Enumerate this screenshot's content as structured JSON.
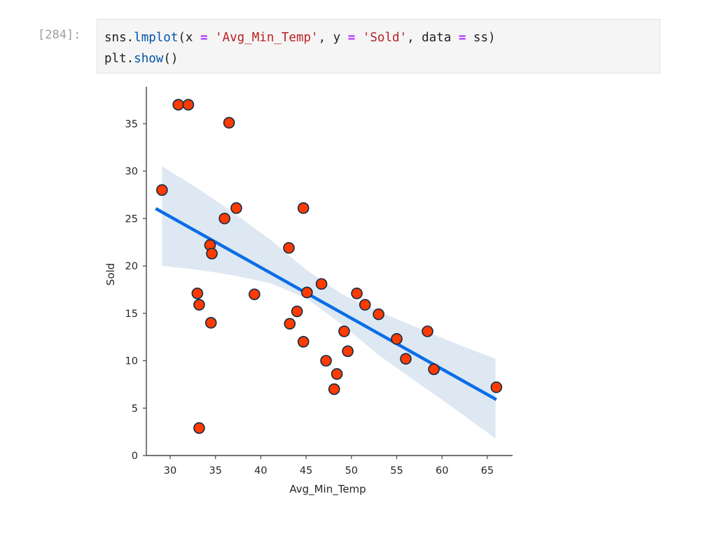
{
  "cell": {
    "prompt": "[284]:",
    "line1": {
      "t1": "sns.",
      "t2": "lmplot",
      "t3": "(x ",
      "t4": "=",
      "t5": " ",
      "t6": "'Avg_Min_Temp'",
      "t7": ", y ",
      "t8": "=",
      "t9": " ",
      "t10": "'Sold'",
      "t11": ", data ",
      "t12": "=",
      "t13": " ss)"
    },
    "line2": {
      "t1": "plt.",
      "t2": "show",
      "t3": "()"
    }
  },
  "colors": {
    "marker_fill": "#ff3b00",
    "marker_edge": "#0d2a4a",
    "line": "#0a6de6",
    "band": "#dde8f3"
  },
  "chart_data": {
    "type": "scatter",
    "title": "",
    "xlabel": "Avg_Min_Temp",
    "ylabel": "Sold",
    "xlim": [
      27.5,
      68
    ],
    "ylim": [
      0,
      38.5
    ],
    "xticks": [
      30,
      35,
      40,
      45,
      50,
      55,
      60,
      65
    ],
    "yticks": [
      0,
      5,
      10,
      15,
      20,
      25,
      30,
      35
    ],
    "grid": false,
    "legend": null,
    "points": [
      {
        "x": 30.9,
        "y": 37.0
      },
      {
        "x": 32.0,
        "y": 37.0
      },
      {
        "x": 36.5,
        "y": 35.1
      },
      {
        "x": 29.1,
        "y": 28.0
      },
      {
        "x": 37.3,
        "y": 26.1
      },
      {
        "x": 36.0,
        "y": 25.0
      },
      {
        "x": 34.4,
        "y": 22.2
      },
      {
        "x": 34.6,
        "y": 21.3
      },
      {
        "x": 33.0,
        "y": 17.1
      },
      {
        "x": 33.2,
        "y": 15.9
      },
      {
        "x": 34.5,
        "y": 14.0
      },
      {
        "x": 39.3,
        "y": 17.0
      },
      {
        "x": 33.2,
        "y": 2.9
      },
      {
        "x": 44.7,
        "y": 26.1
      },
      {
        "x": 43.1,
        "y": 21.9
      },
      {
        "x": 46.7,
        "y": 18.1
      },
      {
        "x": 45.1,
        "y": 17.2
      },
      {
        "x": 44.0,
        "y": 15.2
      },
      {
        "x": 43.2,
        "y": 13.9
      },
      {
        "x": 44.7,
        "y": 12.0
      },
      {
        "x": 49.2,
        "y": 13.1
      },
      {
        "x": 49.6,
        "y": 11.0
      },
      {
        "x": 47.2,
        "y": 10.0
      },
      {
        "x": 48.4,
        "y": 8.6
      },
      {
        "x": 48.1,
        "y": 7.0
      },
      {
        "x": 50.6,
        "y": 17.1
      },
      {
        "x": 51.5,
        "y": 15.9
      },
      {
        "x": 53.0,
        "y": 14.9
      },
      {
        "x": 55.0,
        "y": 12.3
      },
      {
        "x": 58.4,
        "y": 13.1
      },
      {
        "x": 56.0,
        "y": 10.2
      },
      {
        "x": 59.1,
        "y": 9.1
      },
      {
        "x": 66.0,
        "y": 7.2
      }
    ],
    "regression": {
      "x": [
        28.4,
        66.0
      ],
      "y": [
        26.05,
        5.9
      ]
    },
    "ci_band": {
      "x": [
        29.1,
        33.0,
        37.0,
        41.0,
        45.0,
        49.0,
        53.0,
        57.0,
        61.0,
        65.9
      ],
      "upper": [
        30.5,
        28.2,
        25.6,
        22.8,
        19.6,
        17.0,
        15.2,
        13.6,
        12.0,
        10.2
      ],
      "lower": [
        20.0,
        19.6,
        19.0,
        18.2,
        16.6,
        13.8,
        10.6,
        7.9,
        5.2,
        1.8
      ]
    }
  }
}
